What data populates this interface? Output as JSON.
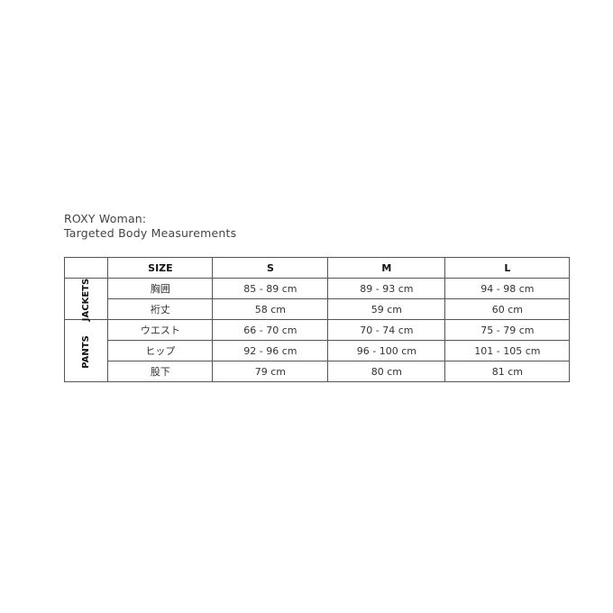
{
  "title": {
    "line1": "ROXY Woman:",
    "line2": "Targeted Body Measurements"
  },
  "table": {
    "headers": [
      "SIZE",
      "S",
      "M",
      "L"
    ],
    "groups": [
      {
        "label": "JACKETS",
        "rows": [
          {
            "name": "胸囲",
            "values": [
              "85 - 89 cm",
              "89 - 93 cm",
              "94 - 98 cm"
            ]
          },
          {
            "name": "裄丈",
            "values": [
              "58 cm",
              "59 cm",
              "60 cm"
            ]
          }
        ]
      },
      {
        "label": "PANTS",
        "rows": [
          {
            "name": "ウエスト",
            "values": [
              "66 - 70 cm",
              "70 - 74 cm",
              "75 - 79 cm"
            ]
          },
          {
            "name": "ヒップ",
            "values": [
              "92 - 96 cm",
              "96 - 100 cm",
              "101 - 105 cm"
            ]
          },
          {
            "name": "股下",
            "values": [
              "79 cm",
              "80 cm",
              "81 cm"
            ]
          }
        ]
      }
    ]
  }
}
